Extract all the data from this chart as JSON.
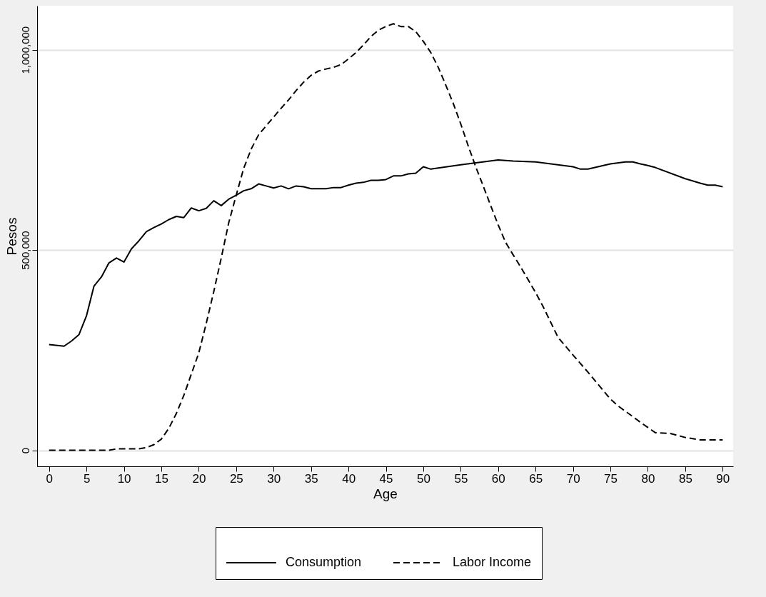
{
  "chart_data": {
    "type": "line",
    "xlabel": "Age",
    "ylabel": "Pesos",
    "xlim": [
      -1.6,
      91.4
    ],
    "xticks": [
      0,
      5,
      10,
      15,
      20,
      25,
      30,
      35,
      40,
      45,
      50,
      55,
      60,
      65,
      70,
      75,
      80,
      85,
      90
    ],
    "ylim": [
      -40000,
      1110000
    ],
    "yticks": [
      {
        "value": 0,
        "label": "0"
      },
      {
        "value": 500000,
        "label": "500,000"
      },
      {
        "value": 1000000,
        "label": "1,000,000"
      }
    ],
    "grid": "y",
    "legend": "bottom",
    "series": [
      {
        "name": "Consumption",
        "color": "#000000",
        "line_style": "solid",
        "x": [
          0,
          2,
          3,
          4,
          5,
          6,
          7,
          8,
          9,
          10,
          11,
          12,
          13,
          14,
          15,
          16,
          17,
          18,
          19,
          20,
          21,
          22,
          23,
          24,
          25,
          26,
          27,
          28,
          29,
          30,
          31,
          32,
          33,
          34,
          35,
          37,
          38,
          39,
          40,
          41,
          42,
          43,
          44,
          45,
          46,
          47,
          48,
          49,
          50,
          51,
          55,
          60,
          62,
          65,
          70,
          71,
          72,
          75,
          77,
          78,
          79,
          80,
          81,
          85,
          87,
          88,
          89,
          90
        ],
        "values": [
          264000,
          260000,
          273000,
          289000,
          336000,
          410000,
          433000,
          468000,
          480000,
          470000,
          503000,
          523000,
          546000,
          556000,
          565000,
          576000,
          584000,
          581000,
          605000,
          598000,
          604000,
          623000,
          611000,
          627000,
          637000,
          648000,
          653000,
          665000,
          660000,
          655000,
          660000,
          653000,
          660000,
          658000,
          653000,
          653000,
          656000,
          656000,
          662000,
          667000,
          669000,
          674000,
          674000,
          676000,
          685000,
          685000,
          690000,
          692000,
          708000,
          702000,
          713000,
          725000,
          722000,
          720000,
          708000,
          702000,
          702000,
          715000,
          720000,
          720000,
          715000,
          711000,
          706000,
          678000,
          667000,
          662000,
          662000,
          658000
        ]
      },
      {
        "name": "Labor Income",
        "color": "#000000",
        "line_style": "dashed",
        "x": [
          0,
          8,
          9,
          12,
          13,
          14,
          15,
          16,
          17,
          18,
          19,
          20,
          21,
          22,
          23,
          24,
          25,
          26,
          27,
          28,
          29,
          30,
          31,
          32,
          33,
          34,
          35,
          36,
          37,
          38,
          39,
          40,
          41,
          42,
          43,
          44,
          45,
          46,
          47,
          48,
          49,
          50,
          51,
          52,
          53,
          54,
          55,
          56,
          57,
          58,
          59,
          60,
          61,
          62,
          63,
          65,
          66,
          68,
          70,
          72,
          74,
          75,
          76,
          78,
          79,
          81,
          83,
          85,
          87,
          90
        ],
        "values": [
          0,
          0,
          3500,
          3500,
          7000,
          14000,
          28000,
          55000,
          92000,
          137000,
          190000,
          243000,
          317000,
          396000,
          480000,
          568000,
          637000,
          704000,
          752000,
          788000,
          810000,
          832000,
          854000,
          875000,
          898000,
          919000,
          936000,
          947000,
          952000,
          956000,
          963000,
          977000,
          993000,
          1012000,
          1033000,
          1049000,
          1058000,
          1065000,
          1058000,
          1058000,
          1045000,
          1021000,
          993000,
          956000,
          912000,
          866000,
          815000,
          760000,
          708000,
          660000,
          611000,
          563000,
          519000,
          488000,
          458000,
          394000,
          359000,
          282000,
          238000,
          195000,
          150000,
          128000,
          111000,
          84000,
          70000,
          44000,
          42000,
          32000,
          26000,
          26000
        ]
      }
    ]
  }
}
